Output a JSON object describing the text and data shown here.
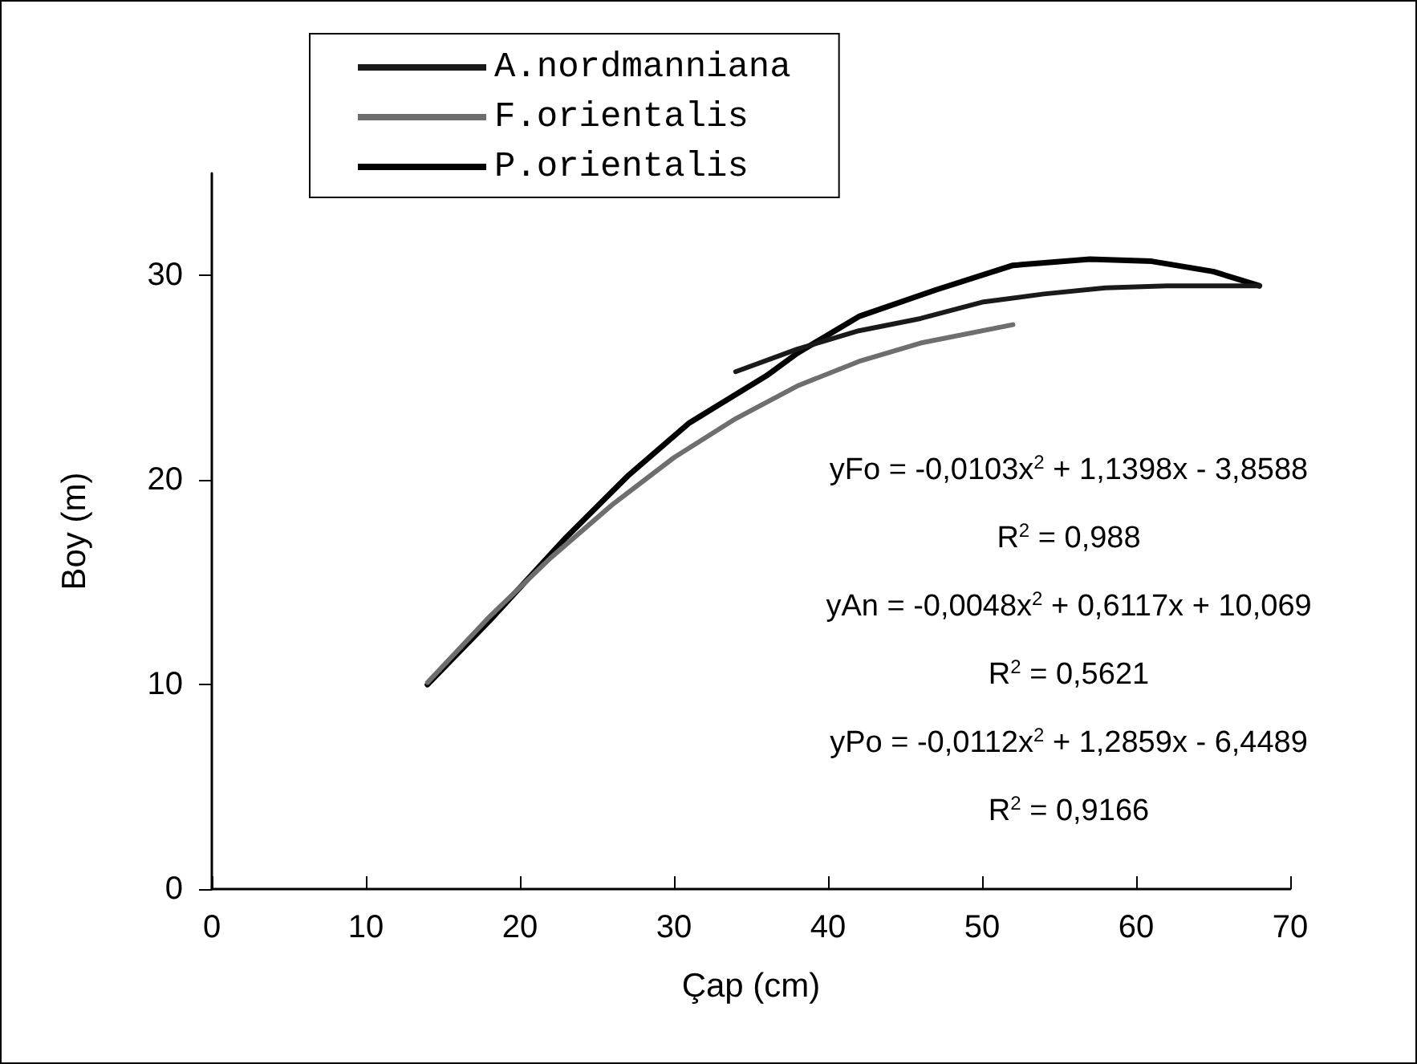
{
  "chart_data": {
    "type": "line",
    "xlabel": "Çap (cm)",
    "ylabel": "Boy (m)",
    "xlim": [
      0,
      70
    ],
    "xticks": [
      0,
      10,
      20,
      30,
      40,
      50,
      60,
      70
    ],
    "ylim": [
      0,
      35
    ],
    "yticks": [
      0,
      10,
      20,
      30
    ],
    "grid": false,
    "legend": "top",
    "marker": "none",
    "line_style": "solid",
    "series": [
      {
        "name": "A.nordmanniana",
        "color": "#1a1a1a",
        "x": [
          34,
          38,
          42,
          46,
          50,
          54,
          58,
          62,
          65,
          68
        ],
        "values": [
          25.3,
          26.4,
          27.3,
          27.9,
          28.7,
          29.1,
          29.4,
          29.5,
          29.5,
          29.5
        ]
      },
      {
        "name": "F.orientalis",
        "color": "#6e6e6e",
        "x": [
          14,
          18,
          22,
          26,
          30,
          34,
          38,
          42,
          46,
          52
        ],
        "values": [
          10.1,
          13.3,
          16.2,
          18.8,
          21.1,
          23.0,
          24.6,
          25.8,
          26.7,
          27.6
        ]
      },
      {
        "name": "P.orientalis",
        "color": "#000000",
        "x": [
          14,
          18,
          23,
          27,
          31,
          36,
          38,
          42,
          47,
          52,
          57,
          61,
          65,
          68
        ],
        "values": [
          10.0,
          13.1,
          17.2,
          20.2,
          22.8,
          25.1,
          26.2,
          28.0,
          29.3,
          30.5,
          30.8,
          30.7,
          30.2,
          29.5
        ]
      }
    ],
    "annotations": [
      "yFo = -0,0103x$^{2}$ + 1,1398x - 3,8588",
      "R$^{2}$ = 0,988",
      "yAn = -0,0048x$^{2}$ + 0,6117x + 10,069",
      "R$^{2}$ = 0,5621",
      "yPo = -0,0112x$^{2}$ + 1,2859x - 6,4489",
      "R$^{2}$ = 0,9166"
    ]
  }
}
